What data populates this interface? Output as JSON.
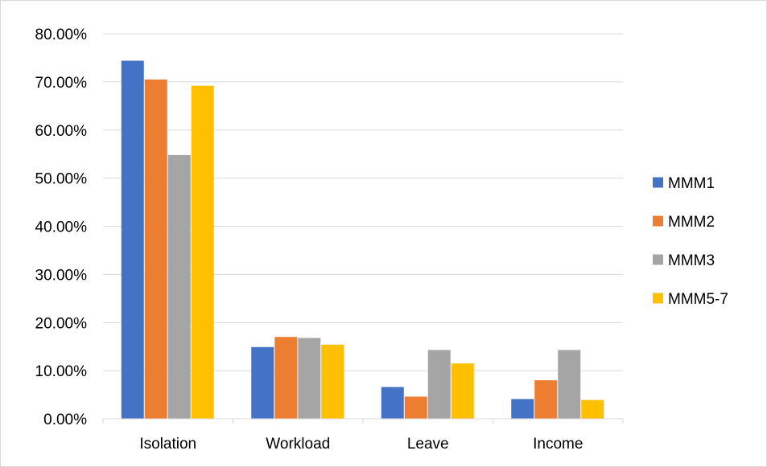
{
  "chart_data": {
    "type": "bar",
    "categories": [
      "Isolation",
      "Workload",
      "Leave",
      "Income"
    ],
    "series": [
      {
        "name": "MMM1",
        "values": [
          74.4,
          14.9,
          6.6,
          4.1
        ],
        "color": "#4472c4"
      },
      {
        "name": "MMM2",
        "values": [
          70.5,
          17.0,
          4.6,
          8.0
        ],
        "color": "#ed7d31"
      },
      {
        "name": "MMM3",
        "values": [
          54.8,
          16.8,
          14.3,
          14.3
        ],
        "color": "#a5a5a5"
      },
      {
        "name": "MMM5-7",
        "values": [
          69.2,
          15.4,
          11.5,
          3.9
        ],
        "color": "#ffc000"
      }
    ],
    "yticks": [
      "0.00%",
      "10.00%",
      "20.00%",
      "30.00%",
      "40.00%",
      "50.00%",
      "60.00%",
      "70.00%",
      "80.00%"
    ],
    "ylim": [
      0,
      80
    ],
    "grid": true,
    "legend_position": "right"
  }
}
